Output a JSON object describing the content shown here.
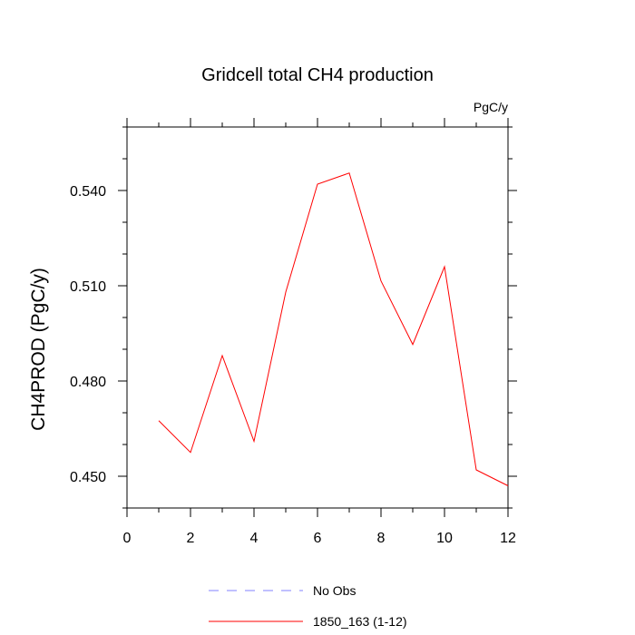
{
  "chart_data": {
    "type": "line",
    "title": "Gridcell total CH4 production",
    "units": "PgC/y",
    "ylabel": "CH4PROD  (PgC/y)",
    "xlabel": "",
    "xlim": [
      0,
      12
    ],
    "ylim": [
      0.44,
      0.56
    ],
    "xticks": [
      "0",
      "2",
      "4",
      "6",
      "8",
      "10",
      "12"
    ],
    "yticks": [
      "0.450",
      "0.480",
      "0.510",
      "0.540"
    ],
    "grid": false,
    "legend_position": "bottom",
    "series": [
      {
        "name": "1850_163 (1-12)",
        "color": "#ff0000",
        "style": "solid",
        "x": [
          1,
          2,
          3,
          4,
          5,
          6,
          7,
          8,
          9,
          10,
          11,
          12
        ],
        "y": [
          0.4675,
          0.4575,
          0.488,
          0.461,
          0.508,
          0.542,
          0.5455,
          0.5115,
          0.4915,
          0.516,
          0.452,
          0.447
        ]
      }
    ],
    "legend": [
      {
        "label": "No Obs",
        "color": "#8080ff",
        "style": "dashed"
      },
      {
        "label": "1850_163 (1-12)",
        "color": "#ff0000",
        "style": "solid"
      }
    ]
  }
}
